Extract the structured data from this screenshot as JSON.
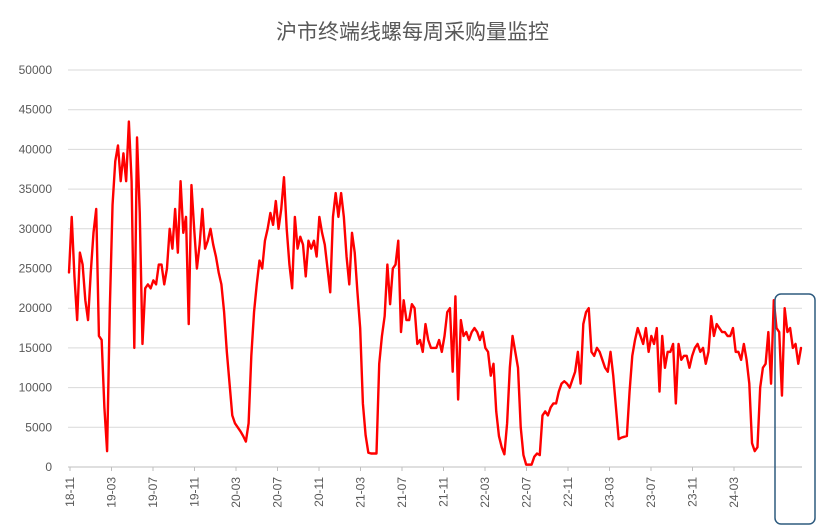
{
  "chart_data": {
    "type": "line",
    "title": "沪市终端线螺每周采购量监控",
    "ylim": [
      0,
      50000
    ],
    "y_ticks": [
      "0",
      "5000",
      "10000",
      "15000",
      "20000",
      "25000",
      "30000",
      "35000",
      "40000",
      "45000",
      "50000"
    ],
    "x_ticks": [
      "18-11",
      "19-03",
      "19-07",
      "19-11",
      "20-03",
      "20-07",
      "20-11",
      "21-03",
      "21-07",
      "21-11",
      "22-03",
      "22-07",
      "22-11",
      "23-03",
      "23-07",
      "23-11",
      "24-03"
    ],
    "grid": "horizontal",
    "legend": "none",
    "series": [
      {
        "color": "#ff0000",
        "values": [
          24500,
          31500,
          24000,
          18500,
          27000,
          25500,
          21000,
          18500,
          24500,
          29500,
          32500,
          16500,
          16000,
          7500,
          2000,
          20000,
          33000,
          38500,
          40500,
          36000,
          39500,
          36000,
          43500,
          36000,
          15000,
          41500,
          32000,
          15500,
          22500,
          23000,
          22500,
          23500,
          23000,
          25500,
          25500,
          23000,
          25000,
          30000,
          27500,
          32500,
          27000,
          36000,
          29500,
          31500,
          18000,
          35500,
          30000,
          25000,
          28000,
          32500,
          27500,
          28500,
          30000,
          28000,
          26500,
          24500,
          23000,
          19500,
          14500,
          10500,
          6500,
          5500,
          5000,
          4500,
          3900,
          3200,
          5500,
          14000,
          19500,
          23000,
          26000,
          25000,
          28500,
          30000,
          32000,
          30500,
          33500,
          30000,
          32500,
          36500,
          30000,
          25500,
          22500,
          31500,
          27500,
          29000,
          28000,
          24000,
          28500,
          27500,
          28500,
          26500,
          31500,
          29500,
          28000,
          25000,
          22000,
          31500,
          34500,
          31500,
          34500,
          31500,
          26500,
          23000,
          29500,
          27000,
          22000,
          17500,
          8000,
          4000,
          1800,
          1700,
          1700,
          1700,
          13000,
          16500,
          19000,
          25500,
          20500,
          25000,
          25500,
          28500,
          17000,
          21000,
          18500,
          18500,
          20500,
          20000,
          15500,
          16000,
          14500,
          18000,
          16000,
          15000,
          15000,
          15000,
          16000,
          14500,
          16500,
          19500,
          20000,
          12000,
          21500,
          8500,
          18500,
          16500,
          17000,
          16000,
          17000,
          17500,
          17000,
          16000,
          17000,
          15000,
          14500,
          11500,
          13000,
          7000,
          3900,
          2500,
          1600,
          5500,
          12500,
          16500,
          14500,
          12500,
          5000,
          1500,
          300,
          300,
          300,
          1300,
          1700,
          1500,
          6500,
          7000,
          6500,
          7500,
          8000,
          8000,
          9500,
          10500,
          10800,
          10500,
          10000,
          11000,
          12000,
          14500,
          10500,
          18000,
          19500,
          20000,
          14500,
          14000,
          15000,
          14500,
          13500,
          12500,
          12000,
          14500,
          11500,
          7500,
          3500,
          3700,
          3800,
          3900,
          9500,
          14000,
          16000,
          17500,
          16500,
          15500,
          17500,
          14500,
          16500,
          15500,
          17500,
          9500,
          16500,
          12500,
          14500,
          14500,
          15500,
          8000,
          15500,
          13500,
          14000,
          14000,
          12500,
          14000,
          15000,
          15500,
          14500,
          15000,
          13000,
          14500,
          19000,
          16500,
          18000,
          17500,
          17000,
          17000,
          16500,
          16500,
          17500,
          14500,
          14500,
          13500,
          15500,
          13500,
          10500,
          3000,
          2000,
          2500,
          10000,
          12500,
          13000,
          17000,
          10500,
          21000,
          17500,
          17000,
          9000,
          20000,
          17000,
          17500,
          15000,
          15500,
          13000,
          15000
        ]
      }
    ]
  },
  "annotation": {
    "box_color": "#2e5b7f"
  }
}
